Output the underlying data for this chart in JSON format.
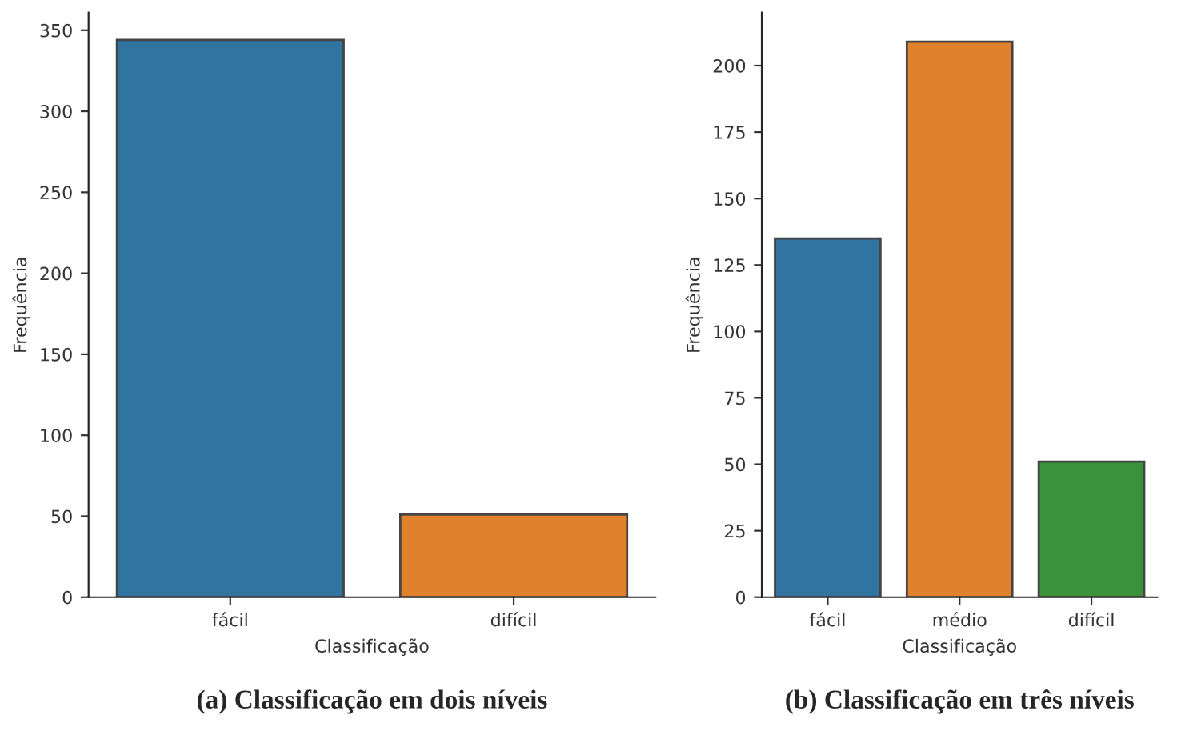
{
  "chart_data": [
    {
      "type": "bar",
      "title": "(a) Classificação em dois níveis",
      "xlabel": "Classificação",
      "ylabel": "Frequência",
      "categories": [
        "fácil",
        "difícil"
      ],
      "values": [
        344,
        51
      ],
      "colors": [
        "#3274a1",
        "#e1812c"
      ],
      "ylim": [
        0,
        361
      ],
      "yticks": [
        0,
        50,
        100,
        150,
        200,
        250,
        300,
        350
      ],
      "grid": false,
      "legend": false
    },
    {
      "type": "bar",
      "title": "(b) Classificação em três níveis",
      "xlabel": "Classificação",
      "ylabel": "Frequência",
      "categories": [
        "fácil",
        "médio",
        "difícil"
      ],
      "values": [
        135,
        209,
        51
      ],
      "colors": [
        "#3274a1",
        "#e1812c",
        "#3a923a"
      ],
      "ylim": [
        0,
        220
      ],
      "yticks": [
        0,
        25,
        50,
        75,
        100,
        125,
        150,
        175,
        200
      ],
      "grid": false,
      "legend": false
    }
  ]
}
